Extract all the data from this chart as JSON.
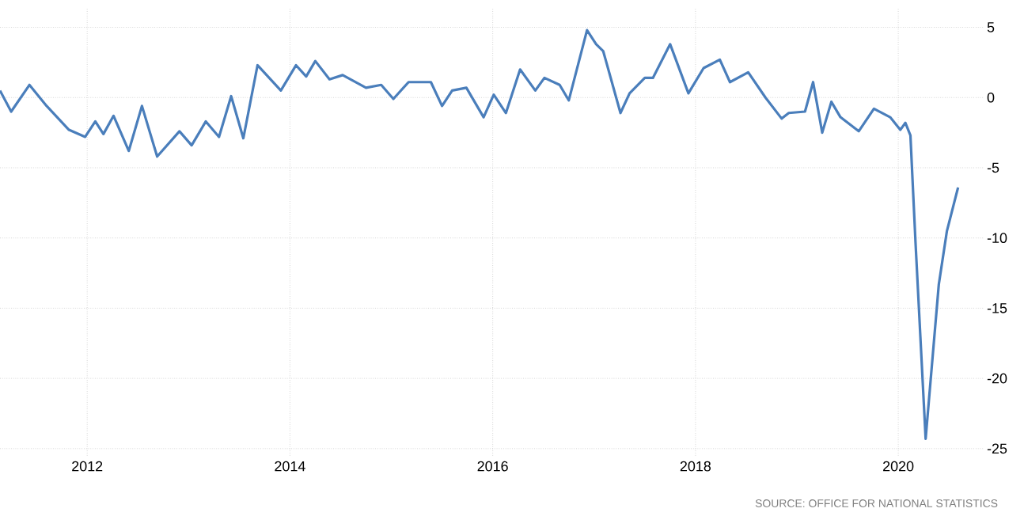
{
  "chart_data": {
    "type": "line",
    "x": [
      2011.14,
      2011.25,
      2011.43,
      2011.6,
      2011.82,
      2011.98,
      2012.08,
      2012.16,
      2012.26,
      2012.41,
      2012.54,
      2012.69,
      2012.91,
      2013.03,
      2013.17,
      2013.3,
      2013.42,
      2013.54,
      2013.68,
      2013.91,
      2014.06,
      2014.16,
      2014.25,
      2014.39,
      2014.52,
      2014.75,
      2014.9,
      2015.02,
      2015.17,
      2015.39,
      2015.5,
      2015.6,
      2015.74,
      2015.91,
      2016.01,
      2016.13,
      2016.27,
      2016.42,
      2016.51,
      2016.66,
      2016.75,
      2016.93,
      2017.02,
      2017.09,
      2017.26,
      2017.35,
      2017.5,
      2017.58,
      2017.75,
      2017.93,
      2018.08,
      2018.24,
      2018.34,
      2018.52,
      2018.69,
      2018.85,
      2018.92,
      2019.08,
      2019.16,
      2019.25,
      2019.34,
      2019.43,
      2019.61,
      2019.76,
      2019.92,
      2020.02,
      2020.07,
      2020.12,
      2020.17,
      2020.27,
      2020.4,
      2020.48,
      2020.59
    ],
    "series": [
      {
        "color": "#4a7ebb",
        "values": [
          0.5,
          -1.0,
          0.9,
          -0.6,
          -2.3,
          -2.8,
          -1.7,
          -2.6,
          -1.3,
          -3.8,
          -0.6,
          -4.2,
          -2.4,
          -3.4,
          -1.7,
          -2.8,
          0.1,
          -2.9,
          2.3,
          0.5,
          2.3,
          1.5,
          2.6,
          1.3,
          1.6,
          0.7,
          0.9,
          -0.1,
          1.1,
          1.1,
          -0.6,
          0.5,
          0.7,
          -1.4,
          0.2,
          -1.1,
          2.0,
          0.5,
          1.4,
          0.9,
          -0.2,
          4.8,
          3.8,
          3.3,
          -1.1,
          0.3,
          1.4,
          1.4,
          3.8,
          0.3,
          2.1,
          2.7,
          1.1,
          1.8,
          0.0,
          -1.5,
          -1.1,
          -1.0,
          1.1,
          -2.5,
          -0.3,
          -1.4,
          -2.4,
          -0.8,
          -1.4,
          -2.3,
          -1.8,
          -2.7,
          -10.3,
          -24.3,
          -13.3,
          -9.5,
          -6.4
        ]
      }
    ],
    "xlim": [
      2011.14,
      2020.85
    ],
    "ylim": [
      -25.5,
      6.4
    ],
    "xticks": [
      2012,
      2014,
      2016,
      2018,
      2020
    ],
    "yticks": [
      -25,
      -20,
      -15,
      -10,
      -5,
      0,
      5
    ],
    "grid": true,
    "line_style": "solid",
    "marker": "none",
    "annotations": [
      "SOURCE: OFFICE FOR NATIONAL STATISTICS"
    ]
  }
}
